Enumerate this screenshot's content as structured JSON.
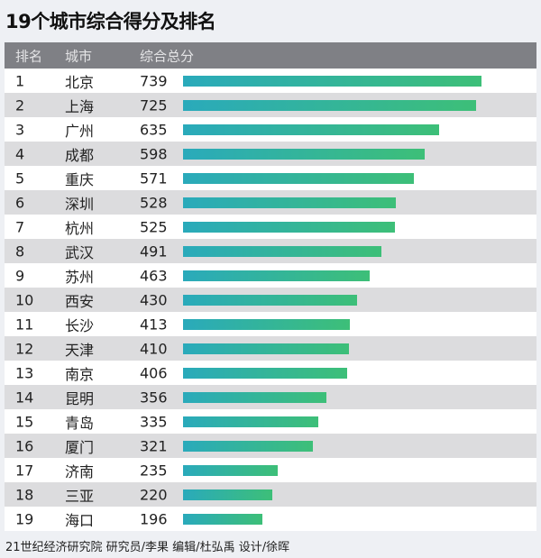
{
  "chart_data": {
    "type": "bar",
    "title": "19个城市综合得分及排名",
    "headers": [
      "排名",
      "城市",
      "综合总分"
    ],
    "ranks": [
      1,
      2,
      3,
      4,
      5,
      6,
      7,
      8,
      9,
      10,
      11,
      12,
      13,
      14,
      15,
      16,
      17,
      18,
      19
    ],
    "categories": [
      "北京",
      "上海",
      "广州",
      "成都",
      "重庆",
      "深圳",
      "杭州",
      "武汉",
      "苏州",
      "西安",
      "长沙",
      "天津",
      "南京",
      "昆明",
      "青岛",
      "厦门",
      "济南",
      "三亚",
      "海口"
    ],
    "values": [
      739,
      725,
      635,
      598,
      571,
      528,
      525,
      491,
      463,
      430,
      413,
      410,
      406,
      356,
      335,
      321,
      235,
      220,
      196
    ],
    "orientation": "horizontal",
    "colors": {
      "bar_start": "#2aaabb",
      "bar_end": "#3dbf78",
      "header_bg": "#7f8085"
    }
  },
  "footer": "21世纪经济研究院 研究员/李果  编辑/杜弘禹  设计/徐晖"
}
